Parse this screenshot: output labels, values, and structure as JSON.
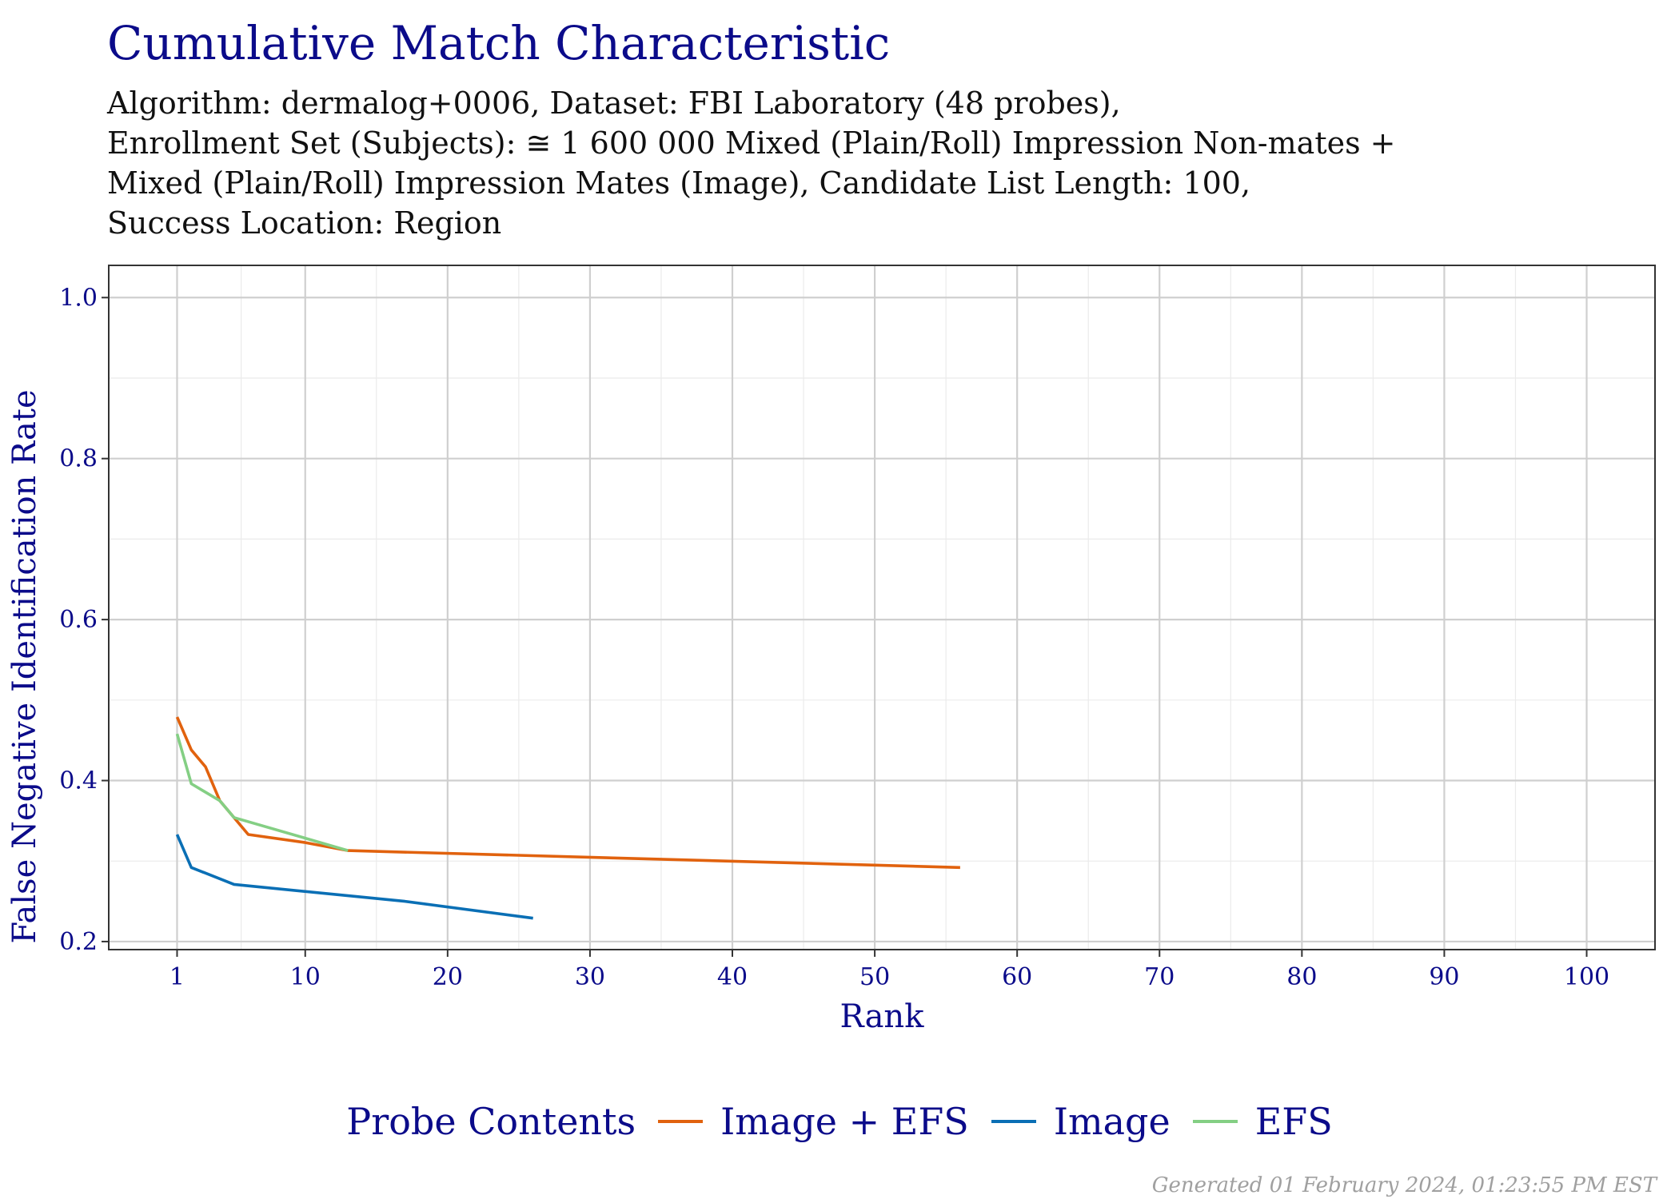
{
  "chart_data": {
    "type": "line",
    "title": "Cumulative Match Characteristic",
    "subtitle": [
      "Algorithm: dermalog+0006, Dataset: FBI Laboratory (48 probes),",
      "Enrollment Set (Subjects): ≅ 1 600 000 Mixed (Plain/Roll) Impression Non-mates +",
      "Mixed (Plain/Roll) Impression Mates (Image), Candidate List Length: 100,",
      "Success Location: Region"
    ],
    "xlabel": "Rank",
    "ylabel": "False Negative Identification Rate",
    "xlim": [
      -3.8,
      104.8
    ],
    "ylim": [
      0.19,
      1.04
    ],
    "xticks": [
      1,
      10,
      20,
      30,
      40,
      50,
      60,
      70,
      80,
      90,
      100
    ],
    "yticks": [
      0.2,
      0.4,
      0.6,
      0.8,
      1.0
    ],
    "ytick_labels": [
      "0.2",
      "0.4",
      "0.6",
      "0.8",
      "1.0"
    ],
    "grid": true,
    "legend": {
      "title": "Probe Contents",
      "placement": "bottom"
    },
    "series": [
      {
        "name": "Image + EFS",
        "color": "#e1620e",
        "x": [
          1,
          2,
          3,
          4,
          5,
          6,
          10,
          13,
          56
        ],
        "y": [
          0.479,
          0.438,
          0.417,
          0.375,
          0.354,
          0.333,
          0.323,
          0.313,
          0.292
        ]
      },
      {
        "name": "Image",
        "color": "#0a6fb5",
        "x": [
          1,
          2,
          5,
          17,
          26
        ],
        "y": [
          0.333,
          0.292,
          0.271,
          0.25,
          0.229
        ]
      },
      {
        "name": "EFS",
        "color": "#84cf84",
        "x": [
          1,
          2,
          4,
          5,
          13
        ],
        "y": [
          0.458,
          0.396,
          0.375,
          0.354,
          0.313
        ]
      }
    ]
  },
  "footer": "Generated 01 February 2024, 01:23:55 PM EST"
}
